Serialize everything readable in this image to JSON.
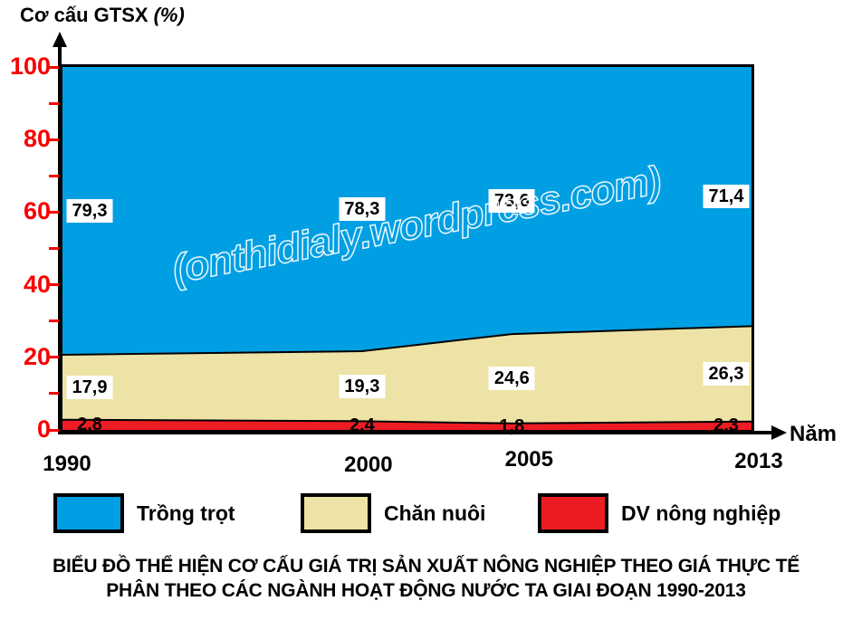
{
  "y_axis": {
    "title": "Cơ cấu GTSX",
    "unit": "(%)",
    "tick_labels": [
      "0",
      "20",
      "40",
      "60",
      "80",
      "100"
    ]
  },
  "x_axis": {
    "label": "Năm",
    "tick_labels": [
      "1990",
      "2000",
      "2005",
      "2013"
    ]
  },
  "watermark": "(onthidialy.wordpress.com)",
  "legend": [
    {
      "label": "Trồng trọt",
      "color": "#009FE3"
    },
    {
      "label": "Chăn nuôi",
      "color": "#EDE3A6"
    },
    {
      "label": "DV nông nghiệp",
      "color": "#ED1C24"
    }
  ],
  "caption": {
    "line1": "BIỂU ĐỒ THỂ HIỆN CƠ CẤU GIÁ TRỊ SẢN XUẤT NÔNG NGHIỆP THEO GIÁ THỰC TẾ",
    "line2": "PHÂN THEO CÁC NGÀNH HOẠT ĐỘNG NƯỚC TA GIAI ĐOẠN 1990-2013"
  },
  "chart_data": {
    "type": "area",
    "stacked": true,
    "percent": true,
    "title": "BIỂU ĐỒ THỂ HIỆN CƠ CẤU GIÁ TRỊ SẢN XUẤT NÔNG NGHIỆP THEO GIÁ THỰC TẾ PHÂN THEO CÁC NGÀNH HOẠT ĐỘNG NƯỚC TA GIAI ĐOẠN 1990-2013",
    "ylabel": "Cơ cấu GTSX (%)",
    "xlabel": "Năm",
    "ylim": [
      0,
      100
    ],
    "y_major_ticks": [
      0,
      20,
      40,
      60,
      80,
      100
    ],
    "y_minor_tick_step": 10,
    "grid": false,
    "legend_position": "bottom",
    "x": [
      1990,
      2000,
      2005,
      2013
    ],
    "x_tick_labels": [
      "1990",
      "2000",
      "2005",
      "2013"
    ],
    "series": [
      {
        "name": "Trồng trọt",
        "values": [
          79.3,
          78.3,
          73.6,
          71.4
        ],
        "labels": [
          "79,3",
          "78,3",
          "73,6",
          "71,4"
        ],
        "color": "#009FE3",
        "label_bg": true
      },
      {
        "name": "Chăn nuôi",
        "values": [
          17.9,
          19.3,
          24.6,
          26.3
        ],
        "labels": [
          "17,9",
          "19,3",
          "24,6",
          "26,3"
        ],
        "color": "#EDE3A6",
        "label_bg": true
      },
      {
        "name": "DV nông nghiệp",
        "values": [
          2.8,
          2.4,
          1.8,
          2.3
        ],
        "labels": [
          "2,8",
          "2,4",
          "1,8",
          "2,3"
        ],
        "color": "#ED1C24",
        "label_bg": false
      }
    ]
  }
}
